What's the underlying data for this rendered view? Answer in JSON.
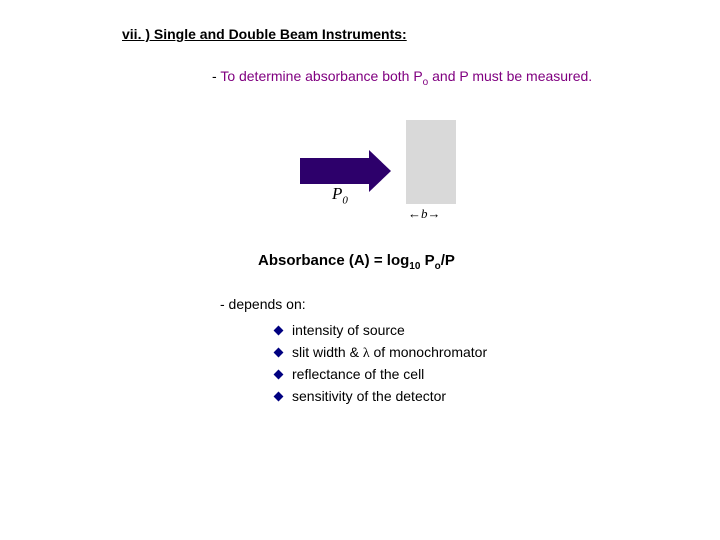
{
  "title": "vii. ) Single and Double Beam Instruments:",
  "line1_prefix": "- ",
  "line1_text_a": "To determine absorbance both P",
  "line1_sub": "o",
  "line1_text_b": " and P must be measured.",
  "diagram": {
    "p_label": "P",
    "p_sub": "0",
    "b_left": "←",
    "b_mid": "b",
    "b_right": "→",
    "arrow_color": "#2d006b",
    "cell_color": "#d9d9d9"
  },
  "formula": {
    "a": "Absorbance (A) = log",
    "sub10": "10",
    "b": " P",
    "subo": "o",
    "c": "/P"
  },
  "depends_label": "-  depends on:",
  "bullets": [
    {
      "pre": "intensity of source",
      "lambda": "",
      "post": ""
    },
    {
      "pre": "slit width & ",
      "lambda": "λ",
      "post": " of monochromator"
    },
    {
      "pre": "reflectance of the cell",
      "lambda": "",
      "post": ""
    },
    {
      "pre": "sensitivity of the detector",
      "lambda": "",
      "post": ""
    }
  ],
  "colors": {
    "purple_text": "#800080",
    "diamond": "#000080"
  }
}
